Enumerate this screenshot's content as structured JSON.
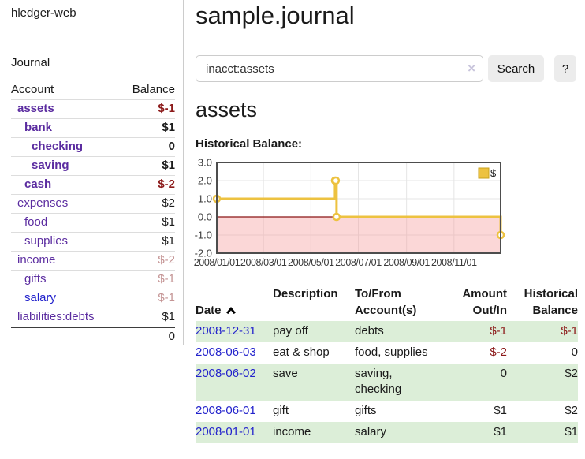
{
  "app": {
    "title": "hledger-web",
    "nav_journal": "Journal"
  },
  "colors": {
    "purple": "#5b2ca0",
    "blue": "#2323cc",
    "red": "#8c1a1a",
    "rose": "#c49494",
    "black": "#1c1c1c",
    "row_green": "#dceed8"
  },
  "sidebar": {
    "col_account": "Account",
    "col_balance": "Balance",
    "accounts": [
      {
        "name": "assets",
        "indent": 1,
        "bold": true,
        "name_color": "purple",
        "balance": "$-1",
        "balance_color": "red",
        "balance_bold": true
      },
      {
        "name": "bank",
        "indent": 2,
        "bold": true,
        "name_color": "purple",
        "balance": "$1",
        "balance_color": "black",
        "balance_bold": true
      },
      {
        "name": "checking",
        "indent": 3,
        "bold": true,
        "name_color": "purple",
        "balance": "0",
        "balance_color": "black",
        "balance_bold": true
      },
      {
        "name": "saving",
        "indent": 3,
        "bold": true,
        "name_color": "purple",
        "balance": "$1",
        "balance_color": "black",
        "balance_bold": true
      },
      {
        "name": "cash",
        "indent": 2,
        "bold": true,
        "name_color": "purple",
        "balance": "$-2",
        "balance_color": "red",
        "balance_bold": true
      },
      {
        "name": "expenses",
        "indent": 1,
        "bold": false,
        "name_color": "purple",
        "balance": "$2",
        "balance_color": "black",
        "balance_bold": false
      },
      {
        "name": "food",
        "indent": 2,
        "bold": false,
        "name_color": "purple",
        "balance": "$1",
        "balance_color": "black",
        "balance_bold": false
      },
      {
        "name": "supplies",
        "indent": 2,
        "bold": false,
        "name_color": "purple",
        "balance": "$1",
        "balance_color": "black",
        "balance_bold": false
      },
      {
        "name": "income",
        "indent": 1,
        "bold": false,
        "name_color": "purple",
        "balance": "$-2",
        "balance_color": "rose",
        "balance_bold": false
      },
      {
        "name": "gifts",
        "indent": 2,
        "bold": false,
        "name_color": "purple",
        "balance": "$-1",
        "balance_color": "rose",
        "balance_bold": false
      },
      {
        "name": "salary",
        "indent": 2,
        "bold": false,
        "name_color": "blue",
        "balance": "$-1",
        "balance_color": "rose",
        "balance_bold": false
      },
      {
        "name": "liabilities:debts",
        "indent": 1,
        "bold": false,
        "name_color": "purple",
        "balance": "$1",
        "balance_color": "black",
        "balance_bold": false
      }
    ],
    "total": "0"
  },
  "header": {
    "title": "sample.journal"
  },
  "search": {
    "value": "inacct:assets",
    "clear_icon": "×",
    "button_label": "Search",
    "help_label": "?"
  },
  "account_page": {
    "heading": "assets",
    "chart_label": "Historical Balance:"
  },
  "chart_data": {
    "type": "line",
    "step": true,
    "title": "Historical Balance:",
    "series": [
      {
        "name": "$",
        "color": "#edc240",
        "points": [
          [
            "2008-01-01",
            1
          ],
          [
            "2008-06-01",
            2
          ],
          [
            "2008-06-02",
            2
          ],
          [
            "2008-06-03",
            0
          ],
          [
            "2008-12-31",
            -1
          ]
        ]
      }
    ],
    "xlim": [
      "2008-01-01",
      "2008-12-31"
    ],
    "ylim": [
      -2,
      3
    ],
    "x_ticks": [
      {
        "date": "2008-01-01",
        "label": "2008/01/01"
      },
      {
        "date": "2008-03-01",
        "label": "2008/03/01"
      },
      {
        "date": "2008-05-01",
        "label": "2008/05/01"
      },
      {
        "date": "2008-07-01",
        "label": "2008/07/01"
      },
      {
        "date": "2008-09-01",
        "label": "2008/09/01"
      },
      {
        "date": "2008-11-01",
        "label": "2008/11/01"
      }
    ],
    "y_ticks": [
      {
        "value": 3,
        "label": "3.0"
      },
      {
        "value": 2,
        "label": "2.0"
      },
      {
        "value": 1,
        "label": "1.0"
      },
      {
        "value": 0,
        "label": "0.0"
      },
      {
        "value": -1,
        "label": "-1.0"
      },
      {
        "value": -2,
        "label": "-2.0"
      }
    ],
    "grid": true,
    "grid_color": "#e5e5e5",
    "border_color": "#4d4d4d",
    "negative_region_fill": "rgba(245,150,150,0.38)",
    "zero_line_color": "#8b1414",
    "legend": {
      "position": "top-right",
      "label": "$",
      "swatch_color": "#edc240",
      "swatch_border": "#c9a21c"
    }
  },
  "register": {
    "columns": [
      {
        "label": "Date"
      },
      {
        "label": "Description"
      },
      {
        "label": "To/From\nAccount(s)"
      },
      {
        "label": "Amount\nOut/In"
      },
      {
        "label": "Historical\nBalance"
      }
    ],
    "rows": [
      {
        "date": "2008-12-31",
        "description": "pay off",
        "accounts": "debts",
        "amount": "$-1",
        "amount_color": "red",
        "balance": "$-1",
        "balance_color": "red",
        "shaded": true
      },
      {
        "date": "2008-06-03",
        "description": "eat & shop",
        "accounts": "food, supplies",
        "amount": "$-2",
        "amount_color": "red",
        "balance": "0",
        "balance_color": "black",
        "shaded": false
      },
      {
        "date": "2008-06-02",
        "description": "save",
        "accounts": "saving, checking",
        "amount": "0",
        "amount_color": "black",
        "balance": "$2",
        "balance_color": "black",
        "shaded": true
      },
      {
        "date": "2008-06-01",
        "description": "gift",
        "accounts": "gifts",
        "amount": "$1",
        "amount_color": "black",
        "balance": "$2",
        "balance_color": "black",
        "shaded": false
      },
      {
        "date": "2008-01-01",
        "description": "income",
        "accounts": "salary",
        "amount": "$1",
        "amount_color": "black",
        "balance": "$1",
        "balance_color": "black",
        "shaded": true
      }
    ]
  }
}
